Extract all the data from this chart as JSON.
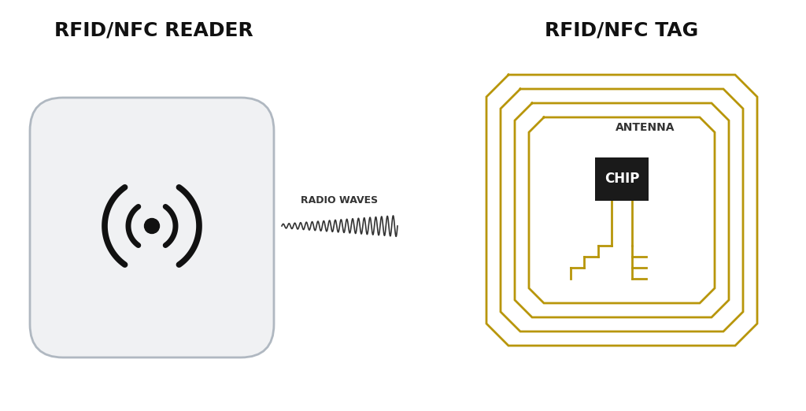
{
  "bg_color": "#ffffff",
  "left_title": "RFID/NFC READER",
  "right_title": "RFID/NFC TAG",
  "radio_waves_label": "RADIO WAVES",
  "antenna_label": "ANTENNA",
  "chip_label": "CHIP",
  "reader_box_edge_color": "#b0b8c1",
  "reader_box_face_color": "#f0f1f3",
  "antenna_color": "#b8960a",
  "chip_color": "#1a1a1a",
  "chip_text_color": "#ffffff",
  "title_fontsize": 18,
  "label_fontsize": 9,
  "chip_label_fontsize": 12,
  "antenna_label_fontsize": 10
}
